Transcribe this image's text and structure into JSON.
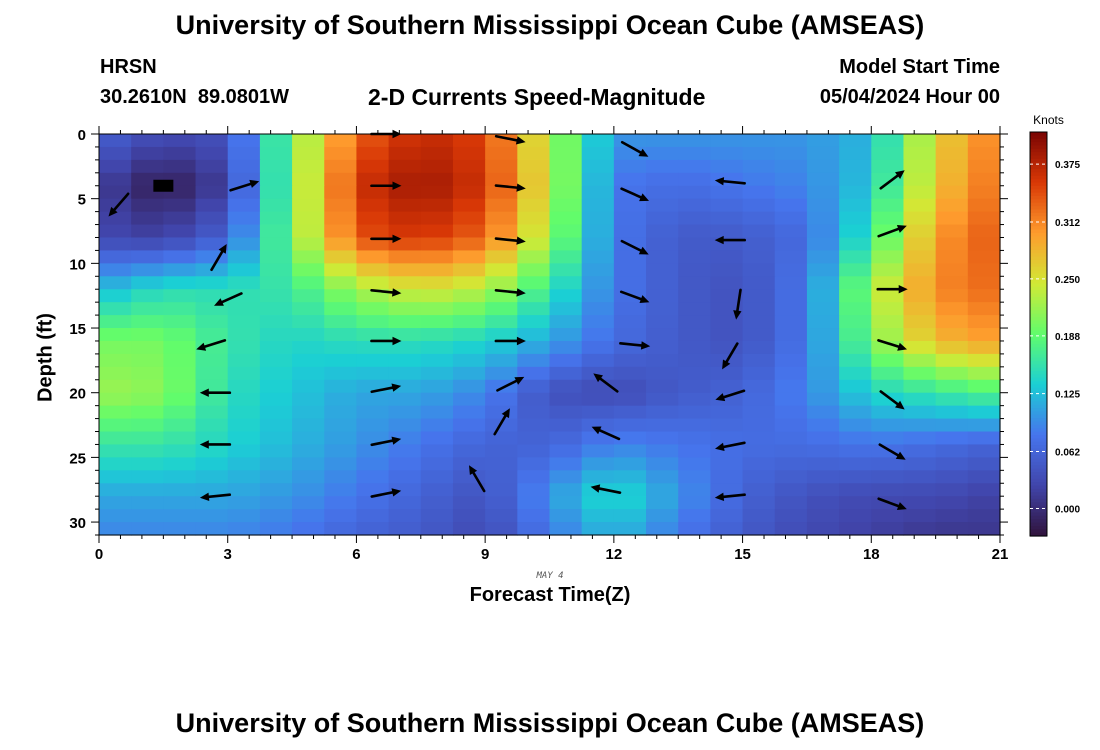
{
  "header": {
    "title": "University of Southern Mississippi Ocean Cube (AMSEAS)",
    "station": "HRSN",
    "coordinates": "30.2610N  89.0801W",
    "subtitle": "2-D Currents Speed-Magnitude",
    "model_start_label": "Model Start Time",
    "model_start_value": "05/04/2024 Hour 00"
  },
  "footer": {
    "title": "University of Southern Mississippi Ocean Cube (AMSEAS)"
  },
  "colors": {
    "scale": [
      "#30123b",
      "#4145ab",
      "#4675ed",
      "#1bcfd4",
      "#61fc6c",
      "#d2e935",
      "#fe9b2d",
      "#d93806",
      "#7a0403"
    ]
  },
  "chart_data": {
    "type": "heatmap",
    "title": "2-D Currents Speed-Magnitude",
    "xlabel": "Forecast Time(Z)",
    "ylabel": "Depth (ft)",
    "x_annotation": "MAY 4",
    "xlim": [
      0,
      21
    ],
    "ylim": [
      0,
      31
    ],
    "y_inverted": true,
    "x_ticks": [
      0,
      3,
      6,
      9,
      12,
      15,
      18,
      21
    ],
    "y_ticks": [
      0,
      5,
      10,
      15,
      20,
      25,
      30
    ],
    "colorbar": {
      "label": "Knots",
      "ticks": [
        "0.375",
        "0.312",
        "0.250",
        "0.188",
        "0.125",
        "0.062",
        "0.000"
      ],
      "range": [
        -0.03,
        0.41
      ]
    },
    "grid_step": {
      "x": 0.75,
      "y": 1
    },
    "speed_anchors": {
      "times": [
        0,
        1.5,
        3,
        4.5,
        6,
        7.5,
        9,
        10.5,
        12,
        13.5,
        15,
        16.5,
        18,
        19.5,
        21
      ],
      "depths": [
        0,
        4,
        8,
        12,
        16,
        20,
        24,
        28,
        31
      ],
      "values": [
        [
          0.06,
          0.03,
          0.04,
          0.2,
          0.33,
          0.37,
          0.35,
          0.23,
          0.1,
          0.1,
          0.1,
          0.1,
          0.12,
          0.26,
          0.32
        ],
        [
          0.02,
          -0.02,
          0.02,
          0.2,
          0.36,
          0.39,
          0.36,
          0.24,
          0.08,
          0.07,
          0.08,
          0.09,
          0.13,
          0.27,
          0.33
        ],
        [
          0.03,
          0.02,
          0.06,
          0.2,
          0.34,
          0.36,
          0.33,
          0.22,
          0.08,
          0.05,
          0.05,
          0.07,
          0.16,
          0.3,
          0.34
        ],
        [
          0.12,
          0.15,
          0.15,
          0.16,
          0.22,
          0.25,
          0.23,
          0.16,
          0.08,
          0.05,
          0.04,
          0.08,
          0.22,
          0.31,
          0.33
        ],
        [
          0.2,
          0.2,
          0.16,
          0.14,
          0.15,
          0.15,
          0.14,
          0.11,
          0.07,
          0.05,
          0.04,
          0.08,
          0.2,
          0.28,
          0.3
        ],
        [
          0.22,
          0.21,
          0.15,
          0.13,
          0.11,
          0.11,
          0.09,
          0.04,
          0.03,
          0.05,
          0.06,
          0.09,
          0.14,
          0.16,
          0.18
        ],
        [
          0.16,
          0.16,
          0.14,
          0.12,
          0.1,
          0.08,
          0.06,
          0.06,
          0.09,
          0.08,
          0.07,
          0.07,
          0.08,
          0.07,
          0.06
        ],
        [
          0.11,
          0.11,
          0.11,
          0.1,
          0.08,
          0.06,
          0.04,
          0.1,
          0.15,
          0.1,
          0.06,
          0.04,
          0.03,
          0.03,
          0.02
        ],
        [
          0.09,
          0.09,
          0.09,
          0.08,
          0.06,
          0.05,
          0.03,
          0.08,
          0.12,
          0.08,
          0.05,
          0.03,
          0.02,
          0.01,
          0.01
        ]
      ]
    },
    "current_vectors": [
      {
        "t": 0.45,
        "d": 5.5,
        "u": -0.65,
        "v": -0.75
      },
      {
        "t": 3.4,
        "d": 4.0,
        "u": 0.95,
        "v": 0.3
      },
      {
        "t": 2.8,
        "d": 9.5,
        "u": 0.5,
        "v": 0.85
      },
      {
        "t": 3.0,
        "d": 12.8,
        "u": -0.9,
        "v": -0.4
      },
      {
        "t": 2.6,
        "d": 16.3,
        "u": -0.95,
        "v": -0.3
      },
      {
        "t": 2.7,
        "d": 20.0,
        "u": -1.0,
        "v": 0.0
      },
      {
        "t": 2.7,
        "d": 24.0,
        "u": -1.0,
        "v": 0.0
      },
      {
        "t": 2.7,
        "d": 28.0,
        "u": -1.0,
        "v": -0.1
      },
      {
        "t": 6.7,
        "d": 0.0,
        "u": 1.0,
        "v": 0.0
      },
      {
        "t": 6.7,
        "d": 4.0,
        "u": 1.0,
        "v": 0.0
      },
      {
        "t": 6.7,
        "d": 8.1,
        "u": 1.0,
        "v": 0.0
      },
      {
        "t": 6.7,
        "d": 12.2,
        "u": 1.0,
        "v": -0.1
      },
      {
        "t": 6.7,
        "d": 16.0,
        "u": 1.0,
        "v": 0.0
      },
      {
        "t": 6.7,
        "d": 19.7,
        "u": 1.0,
        "v": 0.2
      },
      {
        "t": 6.7,
        "d": 23.8,
        "u": 1.0,
        "v": 0.2
      },
      {
        "t": 6.7,
        "d": 27.8,
        "u": 1.0,
        "v": 0.2
      },
      {
        "t": 9.6,
        "d": 0.4,
        "u": 1.0,
        "v": -0.2
      },
      {
        "t": 9.6,
        "d": 4.1,
        "u": 1.0,
        "v": -0.1
      },
      {
        "t": 9.6,
        "d": 8.2,
        "u": 1.0,
        "v": -0.1
      },
      {
        "t": 9.6,
        "d": 12.2,
        "u": 1.0,
        "v": -0.1
      },
      {
        "t": 9.6,
        "d": 16.0,
        "u": 1.0,
        "v": 0.0
      },
      {
        "t": 9.6,
        "d": 19.3,
        "u": 0.9,
        "v": 0.45
      },
      {
        "t": 9.4,
        "d": 22.2,
        "u": 0.5,
        "v": 0.85
      },
      {
        "t": 8.8,
        "d": 26.6,
        "u": -0.5,
        "v": 0.85
      },
      {
        "t": 12.5,
        "d": 1.2,
        "u": 0.9,
        "v": -0.5
      },
      {
        "t": 12.5,
        "d": 4.7,
        "u": 0.9,
        "v": -0.4
      },
      {
        "t": 12.5,
        "d": 8.8,
        "u": 0.9,
        "v": -0.45
      },
      {
        "t": 12.5,
        "d": 12.6,
        "u": 0.95,
        "v": -0.35
      },
      {
        "t": 12.5,
        "d": 16.3,
        "u": 1.0,
        "v": -0.1
      },
      {
        "t": 11.8,
        "d": 19.2,
        "u": -0.8,
        "v": 0.6
      },
      {
        "t": 11.8,
        "d": 23.1,
        "u": -0.9,
        "v": 0.4
      },
      {
        "t": 11.8,
        "d": 27.5,
        "u": -1.0,
        "v": 0.2
      },
      {
        "t": 14.7,
        "d": 3.7,
        "u": -1.0,
        "v": 0.1
      },
      {
        "t": 14.7,
        "d": 8.2,
        "u": -1.0,
        "v": 0.0
      },
      {
        "t": 14.9,
        "d": 13.2,
        "u": -0.15,
        "v": -1.0
      },
      {
        "t": 14.7,
        "d": 17.2,
        "u": -0.5,
        "v": -0.85
      },
      {
        "t": 14.7,
        "d": 20.2,
        "u": -0.95,
        "v": -0.3
      },
      {
        "t": 14.7,
        "d": 24.1,
        "u": -1.0,
        "v": -0.2
      },
      {
        "t": 14.7,
        "d": 28.0,
        "u": -1.0,
        "v": -0.1
      },
      {
        "t": 18.5,
        "d": 3.5,
        "u": 0.8,
        "v": 0.6
      },
      {
        "t": 18.5,
        "d": 7.5,
        "u": 0.95,
        "v": 0.35
      },
      {
        "t": 18.5,
        "d": 12.0,
        "u": 1.0,
        "v": 0.0
      },
      {
        "t": 18.5,
        "d": 16.3,
        "u": 0.95,
        "v": -0.3
      },
      {
        "t": 18.5,
        "d": 20.6,
        "u": 0.8,
        "v": -0.6
      },
      {
        "t": 18.5,
        "d": 24.6,
        "u": 0.85,
        "v": -0.5
      },
      {
        "t": 18.5,
        "d": 28.6,
        "u": 0.95,
        "v": -0.35
      }
    ],
    "land_marker": {
      "t": 1.5,
      "d": 4.0
    }
  }
}
